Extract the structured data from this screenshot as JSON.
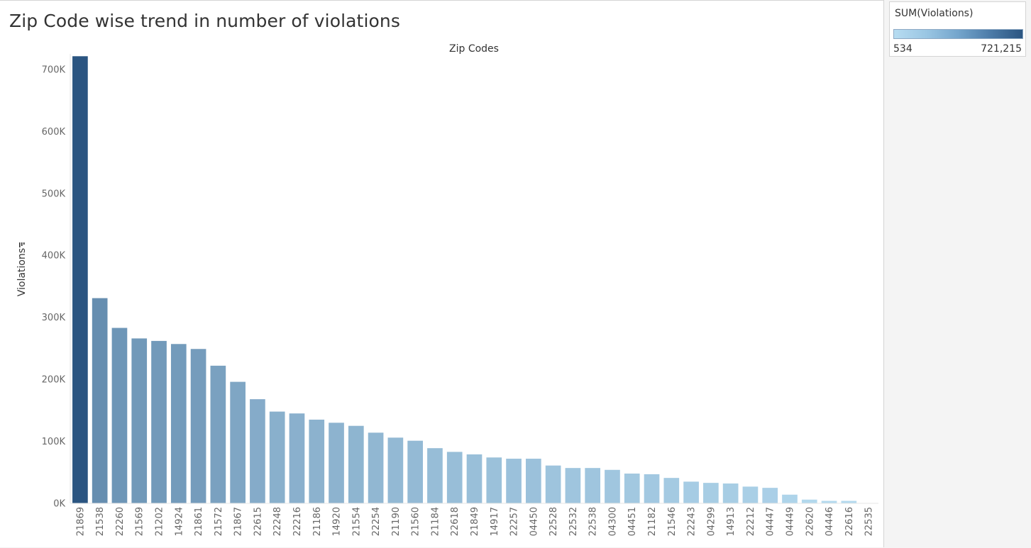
{
  "title": "Zip Code wise trend in number of violations",
  "legend": {
    "title": "SUM(Violations)",
    "min_label": "534",
    "max_label": "721,215",
    "color_low": "#b7dcf1",
    "color_high": "#2b5581"
  },
  "chart_data": {
    "type": "bar",
    "title": "",
    "column_header": "Zip Codes",
    "xlabel": "",
    "ylabel": "Violations",
    "ylim": [
      0,
      725000
    ],
    "y_ticks": [
      0,
      100000,
      200000,
      300000,
      400000,
      500000,
      600000,
      700000
    ],
    "y_tick_labels": [
      "0K",
      "100K",
      "200K",
      "300K",
      "400K",
      "500K",
      "600K",
      "700K"
    ],
    "grid": false,
    "sorted": "descending",
    "categories": [
      "21869",
      "21538",
      "22260",
      "21569",
      "21202",
      "14924",
      "21861",
      "21572",
      "21867",
      "22615",
      "22248",
      "22216",
      "21186",
      "14920",
      "21554",
      "22254",
      "21190",
      "21560",
      "21184",
      "22618",
      "21849",
      "14917",
      "22257",
      "04450",
      "22528",
      "22532",
      "22538",
      "04300",
      "04451",
      "21182",
      "21546",
      "22243",
      "04299",
      "14913",
      "22212",
      "04447",
      "04449",
      "22620",
      "04446",
      "22616",
      "22535"
    ],
    "values": [
      721215,
      331000,
      283000,
      266000,
      262000,
      257000,
      249000,
      222000,
      196000,
      168000,
      148000,
      145000,
      135000,
      130000,
      125000,
      114000,
      106000,
      101000,
      89000,
      83000,
      79000,
      74000,
      72000,
      72000,
      61000,
      57000,
      57000,
      54000,
      48000,
      47000,
      41000,
      35000,
      33000,
      32000,
      27000,
      25000,
      14000,
      6000,
      4000,
      4000,
      534
    ]
  }
}
